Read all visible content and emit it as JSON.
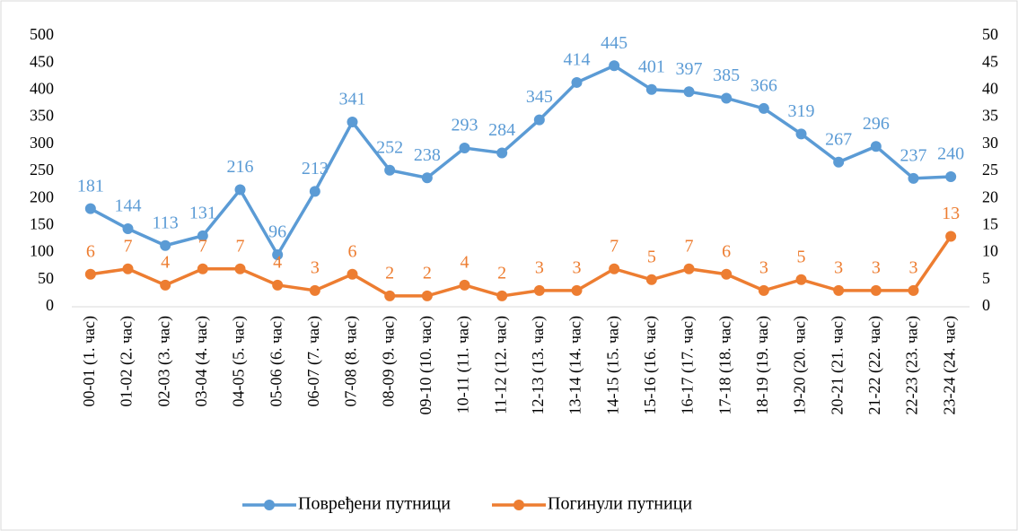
{
  "chart_data": {
    "type": "line",
    "categories": [
      "00-01 (1. час)",
      "01-02 (2. час)",
      "02-03 (3. час)",
      "03-04 (4. час)",
      "04-05 (5. час)",
      "05-06 (6. час)",
      "06-07 (7. час)",
      "07-08 (8. час)",
      "08-09 (9. час)",
      "09-10 (10. час)",
      "10-11 (11. час)",
      "11-12 (12. час)",
      "12-13 (13. час)",
      "13-14 (14. час)",
      "14-15 (15. час)",
      "15-16 (16. час)",
      "16-17 (17. час)",
      "17-18 (18. час)",
      "18-19 (19. час)",
      "19-20 (20. час)",
      "20-21 (21. час)",
      "21-22 (22. час)",
      "22-23 (23. час)",
      "23-24 (24. час)"
    ],
    "series": [
      {
        "name": "Повређени путници",
        "color": "#5b9bd5",
        "values": [
          181,
          144,
          113,
          131,
          216,
          96,
          213,
          341,
          252,
          238,
          293,
          284,
          345,
          414,
          445,
          401,
          397,
          385,
          366,
          319,
          267,
          296,
          237,
          240
        ]
      },
      {
        "name": "Погинули путници",
        "color": "#ed7d31",
        "axis": "y2",
        "values": [
          6,
          7,
          4,
          7,
          7,
          4,
          3,
          6,
          2,
          2,
          4,
          2,
          3,
          3,
          7,
          5,
          7,
          6,
          3,
          5,
          3,
          3,
          3,
          13
        ]
      }
    ],
    "ylim": [
      0,
      500
    ],
    "yticks": [
      0,
      50,
      100,
      150,
      200,
      250,
      300,
      350,
      400,
      450,
      500
    ],
    "y2lim": [
      0,
      50
    ],
    "y2ticks": [
      0,
      5,
      10,
      15,
      20,
      25,
      30,
      35,
      40,
      45,
      50
    ],
    "grid": false,
    "legend": "bottom"
  }
}
